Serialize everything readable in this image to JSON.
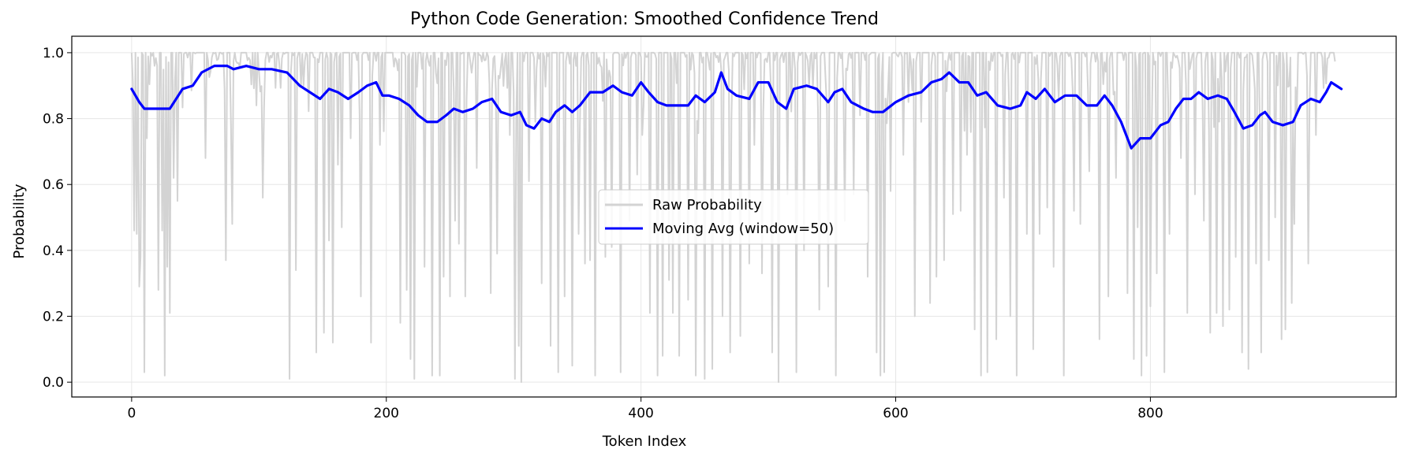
{
  "chart_data": {
    "type": "line",
    "title": "Python Code Generation: Smoothed Confidence Trend",
    "xlabel": "Token Index",
    "ylabel": "Probability",
    "xlim": [
      -47,
      993
    ],
    "ylim": [
      -0.045,
      1.05
    ],
    "xticks": [
      0,
      200,
      400,
      600,
      800
    ],
    "yticks": [
      0.0,
      0.2,
      0.4,
      0.6,
      0.8,
      1.0
    ],
    "xtick_labels": [
      "0",
      "200",
      "400",
      "600",
      "800"
    ],
    "ytick_labels": [
      "0.0",
      "0.2",
      "0.4",
      "0.6",
      "0.8",
      "1.0"
    ],
    "grid": true,
    "legend": {
      "placement": "center"
    },
    "colors": {
      "raw": "#d3d3d3",
      "moving_avg": "#0000ff"
    },
    "series": [
      {
        "name": "Raw Probability",
        "key": "raw",
        "x_start": 0,
        "x_end": 945,
        "dips": [
          [
            2,
            0.46
          ],
          [
            4,
            0.45
          ],
          [
            6,
            0.29
          ],
          [
            7,
            0.38
          ],
          [
            10,
            0.03
          ],
          [
            12,
            0.74
          ],
          [
            18,
            0.96
          ],
          [
            21,
            0.28
          ],
          [
            24,
            0.46
          ],
          [
            26,
            0.02
          ],
          [
            28,
            0.35
          ],
          [
            30,
            0.21
          ],
          [
            33,
            0.62
          ],
          [
            36,
            0.55
          ],
          [
            58,
            0.68
          ],
          [
            74,
            0.37
          ],
          [
            79,
            0.48
          ],
          [
            98,
            0.84
          ],
          [
            103,
            0.56
          ],
          [
            124,
            0.01
          ],
          [
            129,
            0.34
          ],
          [
            145,
            0.09
          ],
          [
            151,
            0.15
          ],
          [
            155,
            0.43
          ],
          [
            158,
            0.12
          ],
          [
            162,
            0.66
          ],
          [
            165,
            0.47
          ],
          [
            172,
            0.74
          ],
          [
            180,
            0.26
          ],
          [
            188,
            0.12
          ],
          [
            195,
            0.72
          ],
          [
            211,
            0.18
          ],
          [
            216,
            0.28
          ],
          [
            219,
            0.07
          ],
          [
            222,
            0.01
          ],
          [
            230,
            0.35
          ],
          [
            236,
            0.02
          ],
          [
            242,
            0.02
          ],
          [
            245,
            0.32
          ],
          [
            250,
            0.26
          ],
          [
            254,
            0.49
          ],
          [
            257,
            0.42
          ],
          [
            262,
            0.26
          ],
          [
            271,
            0.65
          ],
          [
            282,
            0.27
          ],
          [
            287,
            0.39
          ],
          [
            297,
            0.75
          ],
          [
            301,
            0.01
          ],
          [
            304,
            0.11
          ],
          [
            306,
            0.0
          ],
          [
            312,
            0.61
          ],
          [
            317,
            0.79
          ],
          [
            322,
            0.3
          ],
          [
            329,
            0.11
          ],
          [
            335,
            0.03
          ],
          [
            340,
            0.26
          ],
          [
            346,
            0.05
          ],
          [
            351,
            0.45
          ],
          [
            356,
            0.36
          ],
          [
            360,
            0.37
          ],
          [
            364,
            0.02
          ],
          [
            372,
            0.38
          ],
          [
            377,
            0.41
          ],
          [
            384,
            0.03
          ],
          [
            391,
            0.49
          ],
          [
            397,
            0.63
          ],
          [
            401,
            0.75
          ],
          [
            407,
            0.21
          ],
          [
            413,
            0.02
          ],
          [
            417,
            0.08
          ],
          [
            422,
            0.31
          ],
          [
            425,
            0.21
          ],
          [
            430,
            0.08
          ],
          [
            437,
            0.25
          ],
          [
            443,
            0.02
          ],
          [
            450,
            0.01
          ],
          [
            456,
            0.04
          ],
          [
            464,
            0.2
          ],
          [
            470,
            0.09
          ],
          [
            478,
            0.14
          ],
          [
            485,
            0.36
          ],
          [
            489,
            0.72
          ],
          [
            495,
            0.33
          ],
          [
            503,
            0.09
          ],
          [
            508,
            0.0
          ],
          [
            515,
            0.57
          ],
          [
            522,
            0.03
          ],
          [
            528,
            0.4
          ],
          [
            540,
            0.22
          ],
          [
            547,
            0.29
          ],
          [
            553,
            0.02
          ],
          [
            560,
            0.49
          ],
          [
            567,
            0.57
          ],
          [
            572,
            0.81
          ],
          [
            578,
            0.32
          ],
          [
            585,
            0.09
          ],
          [
            588,
            0.02
          ],
          [
            591,
            0.03
          ],
          [
            596,
            0.58
          ],
          [
            606,
            0.69
          ],
          [
            615,
            0.2
          ],
          [
            620,
            0.79
          ],
          [
            627,
            0.24
          ],
          [
            632,
            0.32
          ],
          [
            638,
            0.37
          ],
          [
            645,
            0.51
          ],
          [
            651,
            0.52
          ],
          [
            656,
            0.69
          ],
          [
            662,
            0.16
          ],
          [
            667,
            0.02
          ],
          [
            672,
            0.03
          ],
          [
            679,
            0.13
          ],
          [
            685,
            0.56
          ],
          [
            690,
            0.2
          ],
          [
            695,
            0.02
          ],
          [
            703,
            0.45
          ],
          [
            708,
            0.1
          ],
          [
            713,
            0.45
          ],
          [
            719,
            0.53
          ],
          [
            724,
            0.35
          ],
          [
            732,
            0.02
          ],
          [
            740,
            0.52
          ],
          [
            745,
            0.48
          ],
          [
            752,
            0.64
          ],
          [
            760,
            0.13
          ],
          [
            767,
            0.26
          ],
          [
            773,
            0.62
          ],
          [
            782,
            0.27
          ],
          [
            787,
            0.07
          ],
          [
            790,
            0.47
          ],
          [
            793,
            0.02
          ],
          [
            797,
            0.08
          ],
          [
            800,
            0.23
          ],
          [
            805,
            0.33
          ],
          [
            811,
            0.03
          ],
          [
            815,
            0.45
          ],
          [
            824,
            0.68
          ],
          [
            829,
            0.21
          ],
          [
            835,
            0.57
          ],
          [
            842,
            0.49
          ],
          [
            847,
            0.15
          ],
          [
            852,
            0.21
          ],
          [
            857,
            0.17
          ],
          [
            862,
            0.22
          ],
          [
            867,
            0.38
          ],
          [
            872,
            0.09
          ],
          [
            877,
            0.04
          ],
          [
            883,
            0.36
          ],
          [
            887,
            0.09
          ],
          [
            893,
            0.37
          ],
          [
            898,
            0.5
          ],
          [
            903,
            0.13
          ],
          [
            906,
            0.16
          ],
          [
            911,
            0.24
          ],
          [
            913,
            0.48
          ],
          [
            924,
            0.36
          ],
          [
            930,
            0.75
          ]
        ],
        "highs": [
          [
            15,
            1.0
          ],
          [
            45,
            1.0
          ],
          [
            90,
            1.0
          ],
          [
            140,
            1.0
          ],
          [
            240,
            1.0
          ],
          [
            330,
            1.0
          ],
          [
            420,
            1.0
          ],
          [
            520,
            1.0
          ],
          [
            610,
            1.0
          ],
          [
            700,
            1.0
          ],
          [
            760,
            1.0
          ],
          [
            820,
            1.0
          ],
          [
            880,
            1.0
          ],
          [
            940,
            1.0
          ]
        ]
      },
      {
        "name": "Moving Avg (window=50)",
        "key": "moving_avg",
        "points": [
          [
            0,
            0.89
          ],
          [
            3,
            0.87
          ],
          [
            6,
            0.85
          ],
          [
            10,
            0.83
          ],
          [
            20,
            0.83
          ],
          [
            30,
            0.83
          ],
          [
            35,
            0.86
          ],
          [
            40,
            0.89
          ],
          [
            48,
            0.9
          ],
          [
            55,
            0.94
          ],
          [
            65,
            0.96
          ],
          [
            75,
            0.96
          ],
          [
            80,
            0.95
          ],
          [
            90,
            0.96
          ],
          [
            100,
            0.95
          ],
          [
            110,
            0.95
          ],
          [
            122,
            0.94
          ],
          [
            132,
            0.9
          ],
          [
            140,
            0.88
          ],
          [
            148,
            0.86
          ],
          [
            155,
            0.89
          ],
          [
            162,
            0.88
          ],
          [
            170,
            0.86
          ],
          [
            178,
            0.88
          ],
          [
            185,
            0.9
          ],
          [
            192,
            0.91
          ],
          [
            197,
            0.87
          ],
          [
            202,
            0.87
          ],
          [
            210,
            0.86
          ],
          [
            218,
            0.84
          ],
          [
            225,
            0.81
          ],
          [
            232,
            0.79
          ],
          [
            240,
            0.79
          ],
          [
            247,
            0.81
          ],
          [
            253,
            0.83
          ],
          [
            260,
            0.82
          ],
          [
            268,
            0.83
          ],
          [
            275,
            0.85
          ],
          [
            283,
            0.86
          ],
          [
            290,
            0.82
          ],
          [
            298,
            0.81
          ],
          [
            305,
            0.82
          ],
          [
            310,
            0.78
          ],
          [
            316,
            0.77
          ],
          [
            322,
            0.8
          ],
          [
            328,
            0.79
          ],
          [
            333,
            0.82
          ],
          [
            340,
            0.84
          ],
          [
            346,
            0.82
          ],
          [
            352,
            0.84
          ],
          [
            360,
            0.88
          ],
          [
            370,
            0.88
          ],
          [
            378,
            0.9
          ],
          [
            385,
            0.88
          ],
          [
            393,
            0.87
          ],
          [
            400,
            0.91
          ],
          [
            406,
            0.88
          ],
          [
            413,
            0.85
          ],
          [
            420,
            0.84
          ],
          [
            428,
            0.84
          ],
          [
            437,
            0.84
          ],
          [
            443,
            0.87
          ],
          [
            450,
            0.85
          ],
          [
            458,
            0.88
          ],
          [
            463,
            0.94
          ],
          [
            468,
            0.89
          ],
          [
            475,
            0.87
          ],
          [
            485,
            0.86
          ],
          [
            492,
            0.91
          ],
          [
            500,
            0.91
          ],
          [
            507,
            0.85
          ],
          [
            514,
            0.83
          ],
          [
            520,
            0.89
          ],
          [
            530,
            0.9
          ],
          [
            538,
            0.89
          ],
          [
            547,
            0.85
          ],
          [
            552,
            0.88
          ],
          [
            558,
            0.89
          ],
          [
            565,
            0.85
          ],
          [
            575,
            0.83
          ],
          [
            582,
            0.82
          ],
          [
            590,
            0.82
          ],
          [
            600,
            0.85
          ],
          [
            610,
            0.87
          ],
          [
            620,
            0.88
          ],
          [
            628,
            0.91
          ],
          [
            636,
            0.92
          ],
          [
            642,
            0.94
          ],
          [
            650,
            0.91
          ],
          [
            657,
            0.91
          ],
          [
            664,
            0.87
          ],
          [
            671,
            0.88
          ],
          [
            680,
            0.84
          ],
          [
            690,
            0.83
          ],
          [
            698,
            0.84
          ],
          [
            703,
            0.88
          ],
          [
            710,
            0.86
          ],
          [
            717,
            0.89
          ],
          [
            725,
            0.85
          ],
          [
            733,
            0.87
          ],
          [
            742,
            0.87
          ],
          [
            750,
            0.84
          ],
          [
            758,
            0.84
          ],
          [
            764,
            0.87
          ],
          [
            770,
            0.84
          ],
          [
            777,
            0.79
          ],
          [
            785,
            0.71
          ],
          [
            792,
            0.74
          ],
          [
            800,
            0.74
          ],
          [
            808,
            0.78
          ],
          [
            814,
            0.79
          ],
          [
            820,
            0.83
          ],
          [
            826,
            0.86
          ],
          [
            832,
            0.86
          ],
          [
            838,
            0.88
          ],
          [
            845,
            0.86
          ],
          [
            853,
            0.87
          ],
          [
            860,
            0.86
          ],
          [
            866,
            0.82
          ],
          [
            873,
            0.77
          ],
          [
            880,
            0.78
          ],
          [
            886,
            0.81
          ],
          [
            890,
            0.82
          ],
          [
            896,
            0.79
          ],
          [
            904,
            0.78
          ],
          [
            912,
            0.79
          ],
          [
            918,
            0.84
          ],
          [
            926,
            0.86
          ],
          [
            933,
            0.85
          ],
          [
            938,
            0.88
          ],
          [
            942,
            0.91
          ],
          [
            946,
            0.9
          ],
          [
            950,
            0.89
          ]
        ]
      }
    ]
  }
}
